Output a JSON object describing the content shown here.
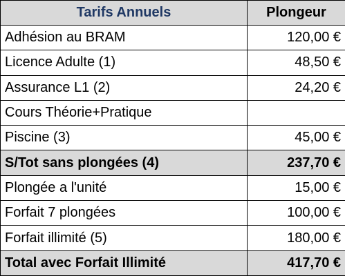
{
  "table": {
    "header": {
      "label": "Tarifs Annuels",
      "column": "Plongeur"
    },
    "rows": [
      {
        "label": "Adhésion au BRAM",
        "value": "120,00 €"
      },
      {
        "label": "Licence Adulte (1)",
        "value": "48,50 €"
      },
      {
        "label": "Assurance L1 (2)",
        "value": "24,20 €"
      },
      {
        "label": "Cours Théorie+Pratique",
        "value": ""
      },
      {
        "label": "Piscine (3)",
        "value": "45,00 €"
      },
      {
        "label": "S/Tot sans plongées (4)",
        "value": "237,70 €",
        "highlight": true
      },
      {
        "label": "Plongée a l'unité",
        "value": "15,00 €"
      },
      {
        "label": "Forfait 7 plongées",
        "value": "100,00 €"
      },
      {
        "label": "Forfait illimité (5)",
        "value": "180,00 €"
      },
      {
        "label": "Total avec Forfait Illimité",
        "value": "417,70 €",
        "highlight": true
      }
    ],
    "colors": {
      "header_text": "#1f3864",
      "highlight_bg": "#d9d9d9",
      "border": "#000000"
    }
  }
}
